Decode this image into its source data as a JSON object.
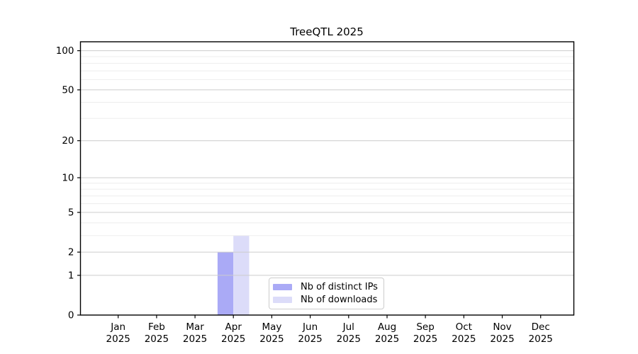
{
  "chart_data": {
    "type": "bar",
    "title": "TreeQTL 2025",
    "categories": [
      "Jan 2025",
      "Feb 2025",
      "Mar 2025",
      "Apr 2025",
      "May 2025",
      "Jun 2025",
      "Jul 2025",
      "Aug 2025",
      "Sep 2025",
      "Oct 2025",
      "Nov 2025",
      "Dec 2025"
    ],
    "series": [
      {
        "name": "Nb of distinct IPs",
        "color": "#aaaaf6",
        "values": [
          0,
          0,
          0,
          2,
          0,
          0,
          0,
          0,
          0,
          0,
          0,
          0
        ]
      },
      {
        "name": "Nb of downloads",
        "color": "#dcdcf9",
        "values": [
          0,
          0,
          0,
          3,
          0,
          0,
          0,
          0,
          0,
          0,
          0,
          0
        ]
      }
    ],
    "xlabel": "",
    "ylabel": "",
    "yscale": "log1p",
    "ylim": [
      0,
      117
    ],
    "yticks": [
      0,
      1,
      2,
      5,
      10,
      20,
      50,
      100
    ],
    "minor_yticks": [
      3,
      4,
      6,
      7,
      8,
      9,
      30,
      40,
      60,
      70,
      80,
      90
    ],
    "grid": true,
    "legend_position": "inside-bottom-center",
    "colors": {
      "major_grid": "#cccccc",
      "minor_grid": "#ededed",
      "axis": "#000000",
      "legend_border": "#cccccc",
      "background": "#ffffff"
    }
  }
}
